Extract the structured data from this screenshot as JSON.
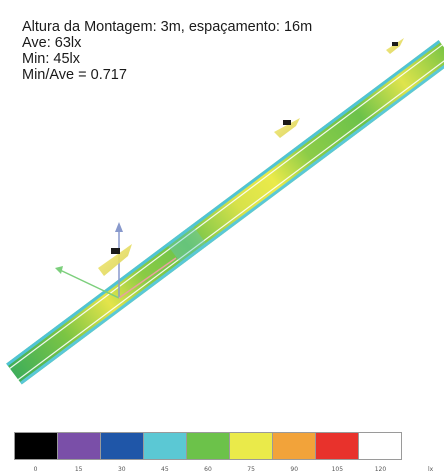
{
  "info": {
    "line1": "Altura da Montagem: 3m, espaçamento: 16m",
    "line2": "Ave: 63lx",
    "line3": "Min: 45lx",
    "line4": "Min/Ave = 0.717"
  },
  "legend": {
    "values": [
      "0",
      "15",
      "30",
      "45",
      "60",
      "75",
      "90",
      "105",
      "120"
    ],
    "colors": [
      "#000000",
      "#7a4fa8",
      "#1f56a8",
      "#5bc8d4",
      "#6cc24a",
      "#eaea4a",
      "#f2a33a",
      "#e8322c",
      "#ffffff"
    ],
    "unit": "lx"
  }
}
